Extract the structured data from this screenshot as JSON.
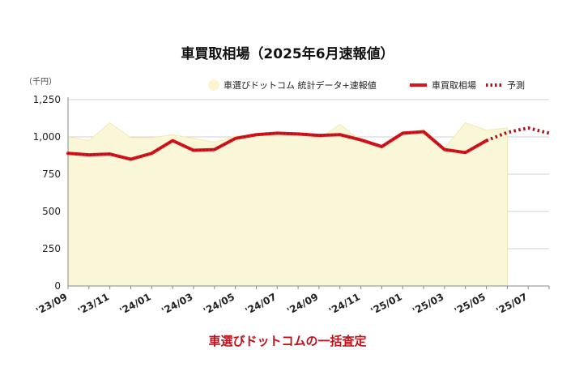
{
  "chart_data": {
    "type": "line",
    "title": "車買取相場（2025年6月速報値）",
    "unit_label": "（千円）",
    "footer": "車選びドットコムの一括査定",
    "ylim": [
      0,
      1250
    ],
    "yticks": [
      0,
      250,
      500,
      750,
      "1,000",
      "1,250"
    ],
    "ytick_values": [
      0,
      250,
      500,
      750,
      1000,
      1250
    ],
    "x_tick_labels": [
      "'23/09",
      "'23/11",
      "'24/01",
      "'24/03",
      "'24/05",
      "'24/07",
      "'24/09",
      "'24/11",
      "'25/01",
      "'25/03",
      "'25/05",
      "'25/07"
    ],
    "x": [
      "'23/09",
      "'23/10",
      "'23/11",
      "'23/12",
      "'24/01",
      "'24/02",
      "'24/03",
      "'24/04",
      "'24/05",
      "'24/06",
      "'24/07",
      "'24/08",
      "'24/09",
      "'24/10",
      "'24/11",
      "'24/12",
      "'25/01",
      "'25/02",
      "'25/03",
      "'25/04",
      "'25/05",
      "'25/06",
      "'25/07",
      "'25/08"
    ],
    "grid": true,
    "legend_position": "top",
    "series": [
      {
        "name": "車選びドットコム 統計データ+速報値",
        "style": "area",
        "color": "#faf6d8",
        "values": [
          1000,
          975,
          1095,
          995,
          995,
          1015,
          990,
          965,
          1005,
          1010,
          1020,
          1025,
          985,
          1085,
          975,
          945,
          1020,
          1050,
          925,
          1095,
          1045,
          1060,
          null,
          null
        ]
      },
      {
        "name": "車買取相場",
        "style": "solid",
        "color": "#d8141c",
        "values": [
          890,
          880,
          885,
          850,
          890,
          975,
          910,
          915,
          990,
          1015,
          1025,
          1020,
          1010,
          1015,
          980,
          935,
          1025,
          1035,
          915,
          895,
          975,
          null,
          null,
          null
        ]
      },
      {
        "name": "予測",
        "style": "dotted",
        "color": "#a8131c",
        "values": [
          null,
          null,
          null,
          null,
          null,
          null,
          null,
          null,
          null,
          null,
          null,
          null,
          null,
          null,
          null,
          null,
          null,
          null,
          null,
          null,
          975,
          1030,
          1060,
          1025
        ]
      }
    ]
  }
}
